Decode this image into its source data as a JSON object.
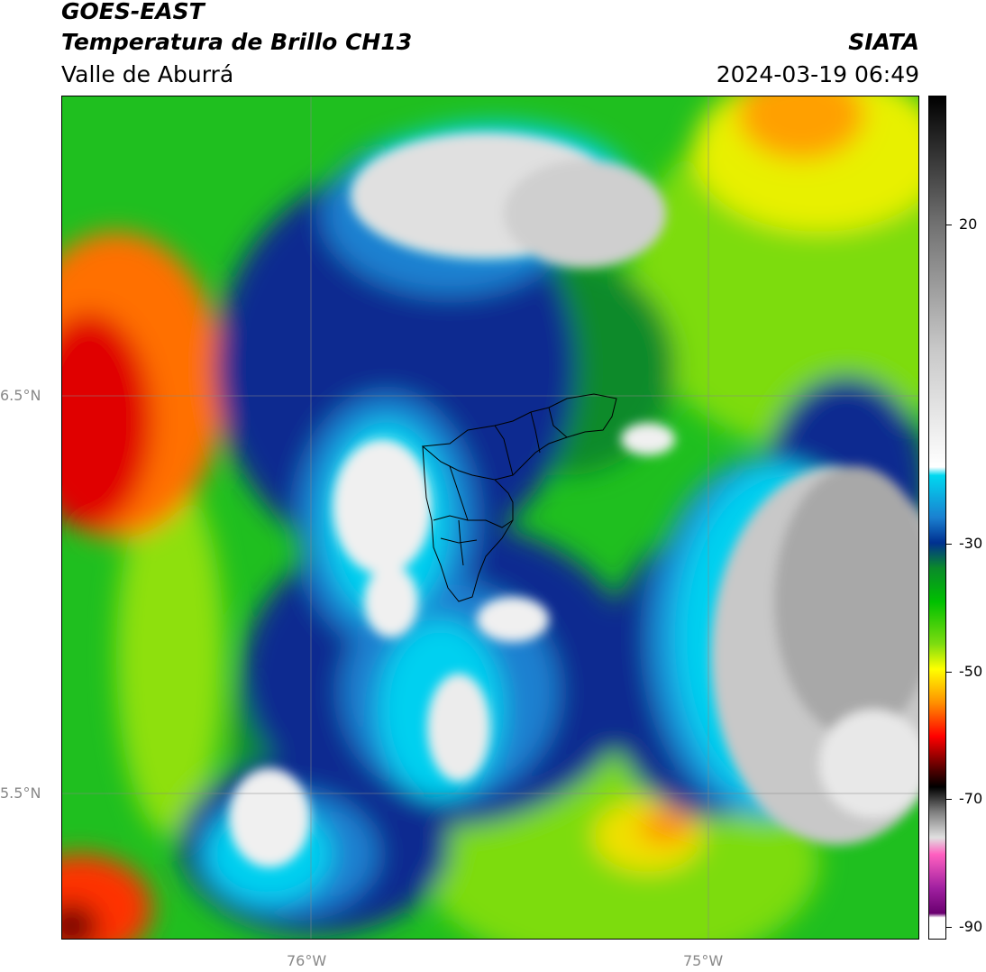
{
  "header": {
    "title_line1": "GOES-EAST",
    "title_line2": "Temperatura de Brillo CH13",
    "title_line3": "Valle de Aburrá",
    "org": "SIATA",
    "datetime": "2024-03-19 06:49"
  },
  "axes": {
    "lat_labels": [
      "6.5°N",
      "5.5°N"
    ],
    "lon_labels": [
      "76°W",
      "75°W"
    ]
  },
  "colorbar": {
    "ticks": [
      "20",
      "-30",
      "-50",
      "-70",
      "-90"
    ],
    "colors": [
      "#000000",
      "#ffffff",
      "#00d8f0",
      "#003090",
      "#00c000",
      "#ffff00",
      "#ff0000",
      "#6a0070"
    ]
  }
}
